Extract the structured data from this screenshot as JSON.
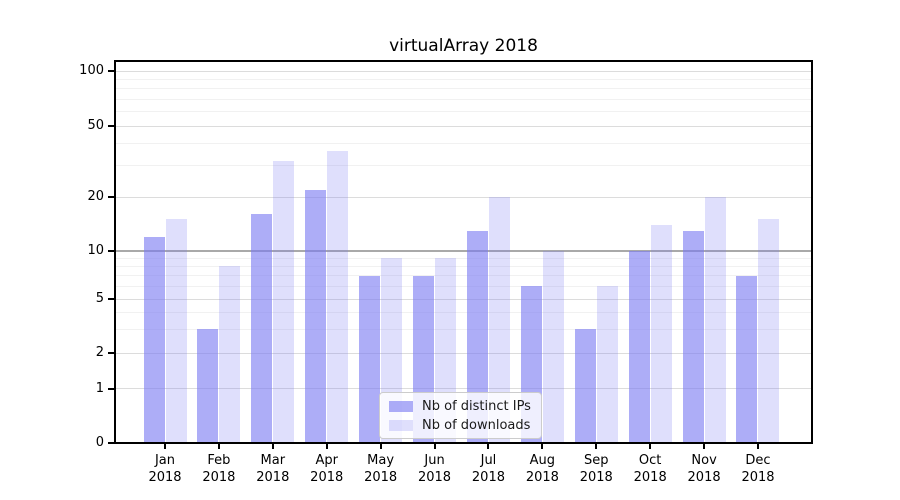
{
  "chart_data": {
    "type": "bar",
    "title": "virtualArray 2018",
    "categories": [
      "Jan 2018",
      "Feb 2018",
      "Mar 2018",
      "Apr 2018",
      "May 2018",
      "Jun 2018",
      "Jul 2018",
      "Aug 2018",
      "Sep 2018",
      "Oct 2018",
      "Nov 2018",
      "Dec 2018"
    ],
    "series": [
      {
        "name": "Nb of distinct IPs",
        "color": "rgba(122,122,242,0.62)",
        "values": [
          12,
          3,
          16,
          22,
          7,
          7,
          13,
          6,
          3,
          10,
          13,
          7
        ]
      },
      {
        "name": "Nb of downloads",
        "color": "rgba(122,122,242,0.24)",
        "values": [
          15,
          8,
          32,
          36,
          9,
          9,
          20,
          10,
          6,
          14,
          20,
          15
        ]
      }
    ],
    "xlabel": "",
    "ylabel": "",
    "y_axis": {
      "ticks": [
        0,
        1,
        2,
        5,
        10,
        20,
        50,
        100
      ],
      "scale": "log-like with linear 0-1 segment",
      "minor_gridlines": [
        3,
        4,
        6,
        7,
        8,
        9,
        30,
        40,
        60,
        70,
        80,
        90
      ],
      "emphasized_gridline": 10,
      "ylim": [
        0,
        100
      ]
    },
    "grid": true,
    "legend": {
      "position": "lower center",
      "entries": [
        "Nb of distinct IPs",
        "Nb of downloads"
      ]
    },
    "colors": {
      "bar_dark": "rgba(122,122,242,0.62)",
      "bar_light": "rgba(122,122,242,0.24)",
      "grid_major": "#dcdcdc",
      "grid_minor": "#f1f1f1",
      "grid_emphasized": "#a9a9a9",
      "background": "#ffffff"
    }
  }
}
